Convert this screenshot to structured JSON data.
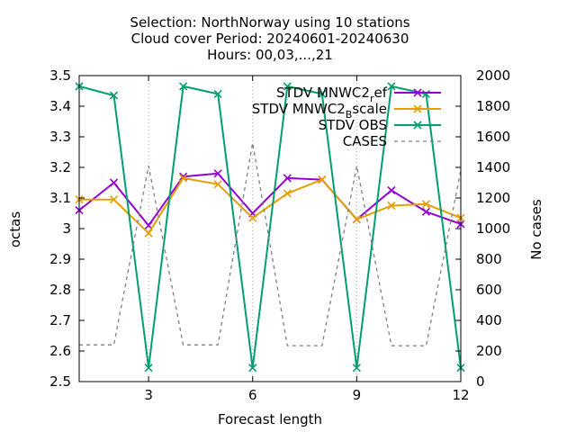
{
  "chart_data": {
    "type": "line",
    "title": {
      "line1": "Selection: NorthNorway using    10 stations",
      "line2": "Cloud cover   Period: 20240601-20240630",
      "line3": "Hours: 00,03,...,21"
    },
    "xlabel": "Forecast length",
    "ylabel": "octas",
    "y2label": "No cases",
    "xlim": [
      1,
      12
    ],
    "ylim": [
      2.5,
      3.5
    ],
    "y2lim": [
      0,
      2000
    ],
    "x_ticks": [
      3,
      6,
      9,
      12
    ],
    "y_ticks": [
      2.5,
      2.6,
      2.7,
      2.8,
      2.9,
      3.0,
      3.1,
      3.2,
      3.3,
      3.4,
      3.5
    ],
    "y_tick_labels": [
      "2.5",
      "2.6",
      "2.7",
      "2.8",
      "2.9",
      "3",
      "3.1",
      "3.2",
      "3.3",
      "3.4",
      "3.5"
    ],
    "y2_ticks": [
      0,
      200,
      400,
      600,
      800,
      1000,
      1200,
      1400,
      1600,
      1800,
      2000
    ],
    "grid": true,
    "legend_position": "top-right",
    "x": [
      1,
      2,
      3,
      4,
      5,
      6,
      7,
      8,
      9,
      10,
      11,
      12
    ],
    "series": [
      {
        "name": "STDV MNWC2_ref",
        "legend_main": "STDV MNWC2",
        "legend_sub": "r",
        "legend_tail": "ef",
        "color": "#9400d3",
        "marker": "x",
        "axis": "y",
        "values": [
          3.06,
          3.15,
          3.01,
          3.17,
          3.18,
          3.05,
          3.165,
          3.16,
          3.03,
          3.125,
          3.055,
          3.015
        ]
      },
      {
        "name": "STDV MNWC2_Bscale",
        "legend_main": "STDV MNWC2",
        "legend_sub": "B",
        "legend_tail": "scale",
        "color": "#e69f00",
        "marker": "x",
        "axis": "y",
        "values": [
          3.095,
          3.095,
          2.985,
          3.165,
          3.145,
          3.035,
          3.115,
          3.16,
          3.03,
          3.075,
          3.08,
          3.035
        ]
      },
      {
        "name": "STDV OBS",
        "legend_main": "STDV OBS",
        "legend_sub": "",
        "legend_tail": "",
        "color": "#009e73",
        "marker": "x",
        "axis": "y",
        "values": [
          3.465,
          3.435,
          2.545,
          3.465,
          3.44,
          2.545,
          3.465,
          3.44,
          2.545,
          3.465,
          3.44,
          2.545
        ]
      },
      {
        "name": "CASES",
        "legend_main": "CASES",
        "legend_sub": "",
        "legend_tail": "",
        "color": "#808080",
        "marker": "none",
        "dash": true,
        "axis": "y2",
        "values": [
          240,
          240,
          1410,
          240,
          240,
          1560,
          235,
          235,
          1410,
          235,
          235,
          1380
        ]
      }
    ]
  }
}
